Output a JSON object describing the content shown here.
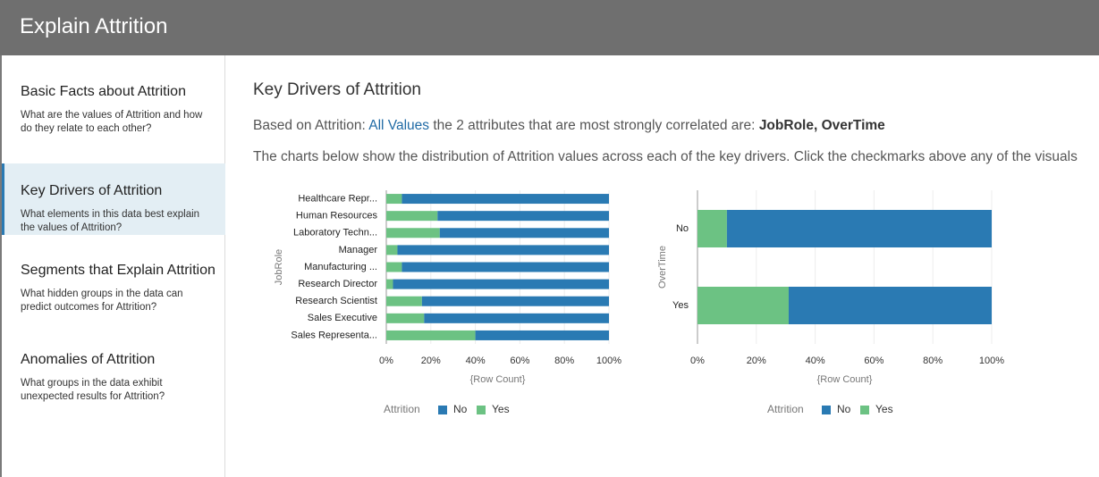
{
  "header": {
    "title": "Explain Attrition"
  },
  "sidebar": {
    "items": [
      {
        "title": "Basic Facts about Attrition",
        "description": "What are the values of Attrition and how do they relate to each other?"
      },
      {
        "title": "Key Drivers of Attrition",
        "description": "What elements in this data best explain the values of Attrition?"
      },
      {
        "title": "Segments that Explain Attrition",
        "description": "What hidden groups in the data can predict outcomes for Attrition?"
      },
      {
        "title": "Anomalies of Attrition",
        "description": "What groups in the data exhibit unexpected results for Attrition?"
      }
    ]
  },
  "main": {
    "title": "Key Drivers of Attrition",
    "summary": {
      "prefix": "Based on Attrition:",
      "link": "All Values",
      "middle": "the 2 attributes that are most strongly correlated are:",
      "attributes": "JobRole, OverTime"
    },
    "description": "The charts below show the distribution of Attrition values across each of the key drivers. Click the checkmarks above any of the visuals"
  },
  "chart_data": [
    {
      "type": "stacked-bar-horizontal",
      "y_label": "JobRole",
      "x_label": "{Row Count}",
      "legend_title": "Attrition",
      "categories": [
        "Healthcare Repr...",
        "Human Resources",
        "Laboratory Techn...",
        "Manager",
        "Manufacturing ...",
        "Research Director",
        "Research Scientist",
        "Sales Executive",
        "Sales Representa..."
      ],
      "series": [
        {
          "name": "No",
          "color": "#2a7ab3",
          "values": [
            93,
            77,
            76,
            95,
            93,
            97,
            84,
            83,
            60
          ]
        },
        {
          "name": "Yes",
          "color": "#6cc283",
          "values": [
            7,
            23,
            24,
            5,
            7,
            3,
            16,
            17,
            40
          ]
        }
      ],
      "xlim": [
        0,
        100
      ],
      "xticks": [
        {
          "value": 0,
          "label": "0%"
        },
        {
          "value": 20,
          "label": "20%"
        },
        {
          "value": 40,
          "label": "40%"
        },
        {
          "value": 60,
          "label": "60%"
        },
        {
          "value": 80,
          "label": "80%"
        },
        {
          "value": 100,
          "label": "100%"
        }
      ],
      "grid": true
    },
    {
      "type": "stacked-bar-horizontal",
      "y_label": "OverTime",
      "x_label": "{Row Count}",
      "legend_title": "Attrition",
      "categories": [
        "No",
        "Yes"
      ],
      "series": [
        {
          "name": "No",
          "color": "#2a7ab3",
          "values": [
            90,
            69
          ]
        },
        {
          "name": "Yes",
          "color": "#6cc283",
          "values": [
            10,
            31
          ]
        }
      ],
      "xlim": [
        0,
        100
      ],
      "xticks": [
        {
          "value": 0,
          "label": "0%"
        },
        {
          "value": 20,
          "label": "20%"
        },
        {
          "value": 40,
          "label": "40%"
        },
        {
          "value": 60,
          "label": "60%"
        },
        {
          "value": 80,
          "label": "80%"
        },
        {
          "value": 100,
          "label": "100%"
        }
      ],
      "grid": true
    }
  ]
}
